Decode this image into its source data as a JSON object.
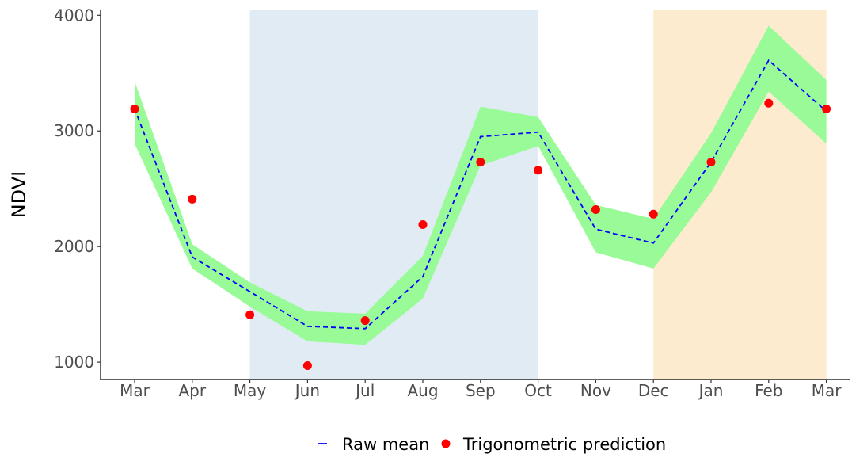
{
  "chart_data": {
    "type": "line",
    "title": "",
    "xlabel": "",
    "ylabel": "NDVI",
    "categories": [
      "Mar",
      "Apr",
      "May",
      "Jun",
      "Jul",
      "Aug",
      "Sep",
      "Oct",
      "Nov",
      "Dec",
      "Jan",
      "Feb",
      "Mar"
    ],
    "ylim": [
      850,
      4050
    ],
    "yticks": [
      1000,
      2000,
      3000,
      4000
    ],
    "grid": false,
    "legend_position": "bottom",
    "shaded_periods": [
      {
        "from_index": 2,
        "to_index": 7,
        "color": "#e0ebf4"
      },
      {
        "from_index": 9,
        "to_index": 12,
        "color": "#fcebcf"
      }
    ],
    "series": [
      {
        "name": "Raw mean",
        "style": "dashed-line",
        "color": "#0000ff",
        "values": [
          3190,
          1910,
          1610,
          1310,
          1290,
          1740,
          2950,
          2990,
          2150,
          2030,
          2730,
          3610,
          3170
        ],
        "band_lower": [
          2890,
          1810,
          1480,
          1180,
          1150,
          1550,
          2700,
          2870,
          1950,
          1810,
          2470,
          3340,
          2890
        ],
        "band_upper": [
          3430,
          2020,
          1690,
          1440,
          1420,
          1920,
          3210,
          3120,
          2360,
          2240,
          2980,
          3910,
          3440
        ],
        "band_color": "#98fb98"
      },
      {
        "name": "Trigonometric prediction",
        "style": "points",
        "color": "#ff0000",
        "values": [
          3190,
          2410,
          1410,
          970,
          1360,
          2190,
          2730,
          2660,
          2320,
          2280,
          2730,
          3240,
          3190
        ]
      }
    ]
  }
}
